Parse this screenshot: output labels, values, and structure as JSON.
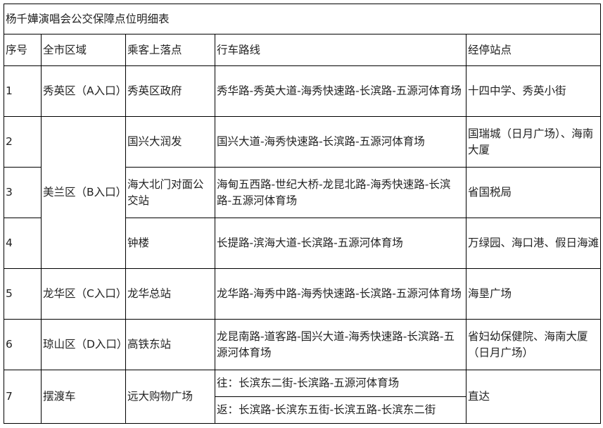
{
  "title": "杨千嬅演唱会公交保障点位明细表",
  "headers": [
    "序号",
    "全市区域",
    "乘客上落点",
    "行车路线",
    "经停站点"
  ],
  "rows": [
    {
      "no": "1",
      "region": "秀英区（A入口）",
      "stop": "秀英区政府",
      "route": "秀华路-秀英大道-海秀快速路-长滨路-五源河体育场",
      "via": "十四中学、秀英小街"
    },
    {
      "no": "2",
      "region": "美兰区（B入口）",
      "stop": "国兴大润发",
      "route": "国兴大道-海秀快速路-长滨路-五源河体育场",
      "via": "国瑞城（日月广场）、海南大厦"
    },
    {
      "no": "3",
      "stop": "海大北门对面公交站",
      "route": "海甸五西路-世纪大桥-龙昆北路-海秀快速路-长滨路-五源河体育场",
      "via": "省国税局"
    },
    {
      "no": "4",
      "stop": "钟楼",
      "route": "长提路-滨海大道-长滨路-五源河体育场",
      "via": "万绿园、海口港、假日海滩"
    },
    {
      "no": "5",
      "region": "龙华区（C入口）",
      "stop": "龙华总站",
      "route": "龙华路-海秀中路-海秀快速路-长滨路-五源河体育场",
      "via": "海垦广场"
    },
    {
      "no": "6",
      "region": "琼山区（D入口）",
      "stop": "高铁东站",
      "route": "龙昆南路-道客路-国兴大道-海秀快速路-长滨路-五源河体育场",
      "via": "省妇幼保健院、海南大厦（日月广场）"
    },
    {
      "no": "7",
      "region": "摆渡车",
      "stop": "远大购物广场",
      "route_go": "往：长滨东二街-长滨路-五源河体育场",
      "route_back": "返：长滨路-长滨东五街-长滨五路-长滨东二街",
      "via": "直达"
    }
  ]
}
